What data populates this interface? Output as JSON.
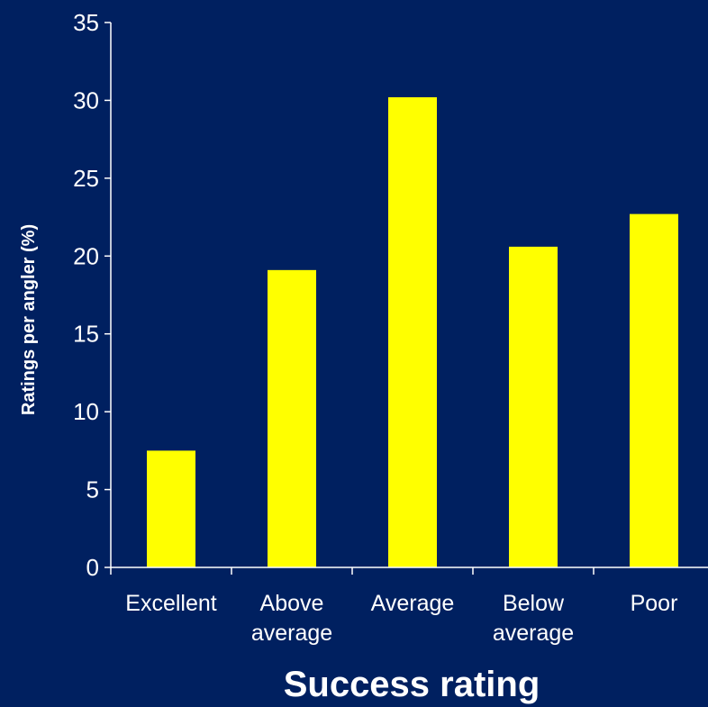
{
  "chart_data": {
    "type": "bar",
    "categories": [
      [
        "Excellent"
      ],
      [
        "Above",
        "average"
      ],
      [
        "Average"
      ],
      [
        "Below",
        "average"
      ],
      [
        "Poor"
      ]
    ],
    "values": [
      7.5,
      19.1,
      30.2,
      20.6,
      22.7
    ],
    "xlabel": "Success rating",
    "ylabel": "Ratings per angler (%)",
    "ylim": [
      0,
      35
    ],
    "yticks": [
      0,
      5,
      10,
      15,
      20,
      25,
      30,
      35
    ],
    "grid": false,
    "legend": "none"
  },
  "colors": {
    "background": "#002060",
    "bar": "#ffff00",
    "text": "#ffffff",
    "axis": "#ffffff"
  }
}
